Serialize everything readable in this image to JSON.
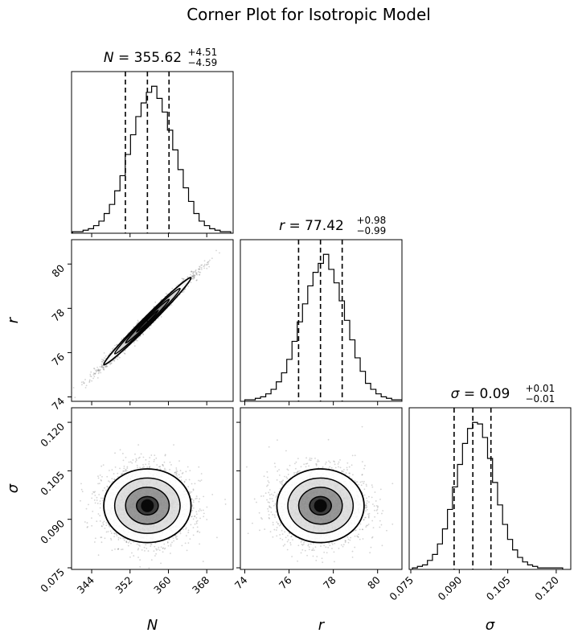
{
  "chart_data": {
    "type": "corner",
    "title": "Corner Plot for Isotropic Model",
    "parameters": [
      {
        "key": "N",
        "label": "N",
        "title_prefix": "N = ",
        "median": "355.62",
        "plus": "+4.51",
        "minus": "−4.59",
        "quantiles": [
          351.03,
          355.62,
          360.13
        ],
        "range": [
          339.8,
          373.5
        ],
        "ticks": [
          344,
          352,
          360,
          368
        ],
        "tick_labels": [
          "344",
          "352",
          "360",
          "368"
        ],
        "histogram": {
          "start": 340.0,
          "bin_width": 1.1,
          "counts": [
            1,
            1,
            2,
            3,
            5,
            8,
            13,
            19,
            28,
            38,
            52,
            65,
            77,
            86,
            93,
            97,
            89,
            80,
            68,
            55,
            42,
            30,
            21,
            13,
            8,
            5,
            3,
            2,
            1,
            1
          ]
        }
      },
      {
        "key": "r",
        "label": "r",
        "title_prefix": "r = ",
        "median": "77.42",
        "plus": "+0.98",
        "minus": "−0.99",
        "quantiles": [
          76.43,
          77.42,
          78.4
        ],
        "range": [
          73.8,
          81.1
        ],
        "ticks": [
          74,
          76,
          78,
          80
        ],
        "tick_labels": [
          "74",
          "76",
          "78",
          "80"
        ],
        "histogram": {
          "start": 74.0,
          "bin_width": 0.237,
          "counts": [
            1,
            1,
            2,
            3,
            5,
            8,
            13,
            19,
            28,
            40,
            53,
            65,
            77,
            86,
            92,
            98,
            88,
            79,
            67,
            54,
            41,
            29,
            20,
            12,
            8,
            5,
            3,
            2,
            1,
            1
          ]
        }
      },
      {
        "key": "sigma",
        "label": "σ",
        "title_prefix": "σ = ",
        "median": "0.09",
        "plus": "+0.01",
        "minus": "−0.01",
        "quantiles": [
          0.0884,
          0.0942,
          0.0998
        ],
        "range": [
          0.0745,
          0.1245
        ],
        "ticks": [
          0.075,
          0.09,
          0.105,
          0.12
        ],
        "tick_labels": [
          "0.075",
          "0.090",
          "0.105",
          "0.120"
        ],
        "histogram": {
          "start": 0.0755,
          "bin_width": 0.00155,
          "counts": [
            1,
            2,
            3,
            6,
            10,
            17,
            27,
            40,
            55,
            70,
            84,
            94,
            98,
            97,
            88,
            74,
            58,
            43,
            30,
            20,
            13,
            8,
            5,
            3,
            2,
            1,
            1,
            1,
            1,
            1
          ]
        }
      }
    ],
    "pairs": [
      {
        "x": "N",
        "y": "r",
        "center": [
          355.62,
          77.42
        ],
        "sd": [
          4.55,
          0.985
        ],
        "correlation": 0.99
      },
      {
        "x": "N",
        "y": "sigma",
        "center": [
          355.62,
          0.0942
        ],
        "sd": [
          4.55,
          0.0057
        ],
        "correlation": 0.0
      },
      {
        "x": "r",
        "y": "sigma",
        "center": [
          77.42,
          0.0942
        ],
        "sd": [
          0.985,
          0.0057
        ],
        "correlation": 0.0
      }
    ],
    "contour_levels": [
      0.5,
      1.0,
      1.5,
      2.0
    ],
    "grid": false,
    "colors": {
      "axes": "#000000",
      "hist": "#000000",
      "points": "#555555",
      "contour_fill": "#000000",
      "background": "#ffffff"
    }
  }
}
